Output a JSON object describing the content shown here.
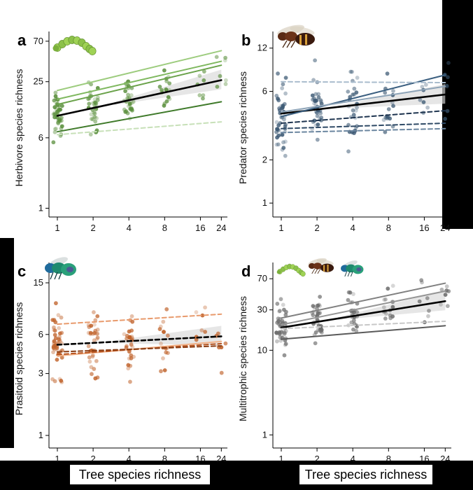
{
  "x_axis_label": "Tree species richness",
  "x_ticks": [
    1,
    2,
    4,
    8,
    16,
    24
  ],
  "chart_data": [
    {
      "type": "scatter",
      "panel_label": "a",
      "ylabel": "Herbivore species richness",
      "y_ticks": [
        1,
        6,
        25,
        70
      ],
      "ylim": [
        0.8,
        75
      ],
      "xlim": [
        0.85,
        27
      ],
      "log_axes": true,
      "color": "#5a8f3c",
      "icon": "caterpillar-icon",
      "fit_lines": [
        {
          "from": [
            1,
            10.5
          ],
          "to": [
            24,
            26
          ],
          "style": "solid",
          "color": "#000000",
          "overall": true
        },
        {
          "from": [
            1,
            20
          ],
          "to": [
            24,
            55
          ],
          "style": "solid",
          "color": "#9dcc7e"
        },
        {
          "from": [
            1,
            16
          ],
          "to": [
            24,
            42
          ],
          "style": "solid",
          "color": "#7fb85f"
        },
        {
          "from": [
            1,
            14
          ],
          "to": [
            24,
            38
          ],
          "style": "solid",
          "color": "#6aa24a"
        },
        {
          "from": [
            1,
            7
          ],
          "to": [
            24,
            15
          ],
          "style": "solid",
          "color": "#3f7a2a"
        },
        {
          "from": [
            1,
            6.5
          ],
          "to": [
            24,
            9
          ],
          "style": "dashed",
          "color": "#c7e0b8"
        }
      ]
    },
    {
      "type": "scatter",
      "panel_label": "b",
      "ylabel": "Predator species richness",
      "y_ticks": [
        1,
        2,
        6,
        12
      ],
      "ylim": [
        0.8,
        14
      ],
      "xlim": [
        0.85,
        27
      ],
      "log_axes": true,
      "color": "#3b5873",
      "icon": "wasp-icon",
      "fit_lines": [
        {
          "from": [
            1,
            4.2
          ],
          "to": [
            24,
            5.7
          ],
          "style": "solid",
          "color": "#000000",
          "overall": true
        },
        {
          "from": [
            1,
            4.0
          ],
          "to": [
            24,
            7.8
          ],
          "style": "solid",
          "color": "#3b5f80"
        },
        {
          "from": [
            1,
            4.3
          ],
          "to": [
            24,
            6.5
          ],
          "style": "solid",
          "color": "#8da3b7"
        },
        {
          "from": [
            1,
            7.0
          ],
          "to": [
            24,
            6.9
          ],
          "style": "dashed",
          "color": "#a9bccd"
        },
        {
          "from": [
            1,
            3.6
          ],
          "to": [
            24,
            4.4
          ],
          "style": "dashed",
          "color": "#1f3550"
        },
        {
          "from": [
            1,
            3.3
          ],
          "to": [
            24,
            3.6
          ],
          "style": "dashed",
          "color": "#2f4a66"
        },
        {
          "from": [
            1,
            3.1
          ],
          "to": [
            24,
            3.3
          ],
          "style": "dashed",
          "color": "#6b86a0"
        }
      ]
    },
    {
      "type": "scatter",
      "panel_label": "c",
      "ylabel": "Prasitoid species richness",
      "y_ticks": [
        1,
        3,
        6,
        15
      ],
      "ylim": [
        0.8,
        19
      ],
      "xlim": [
        0.85,
        27
      ],
      "log_axes": true,
      "color": "#c0622a",
      "icon": "cuckoo-wasp-icon",
      "fit_lines": [
        {
          "from": [
            1,
            5.0
          ],
          "to": [
            24,
            5.8
          ],
          "style": "dashed",
          "color": "#000000",
          "overall": true
        },
        {
          "from": [
            1,
            7.2
          ],
          "to": [
            24,
            8.6
          ],
          "style": "dashed",
          "color": "#e89a6c"
        },
        {
          "from": [
            1,
            4.1
          ],
          "to": [
            24,
            5.3
          ],
          "style": "solid",
          "color": "#f2b38a"
        },
        {
          "from": [
            1,
            4.2
          ],
          "to": [
            24,
            5.1
          ],
          "style": "dashed",
          "color": "#b8541f"
        },
        {
          "from": [
            1,
            4.4
          ],
          "to": [
            24,
            4.9
          ],
          "style": "dashed",
          "color": "#8a3d14"
        }
      ]
    },
    {
      "type": "scatter",
      "panel_label": "d",
      "ylabel": "Multitrophic species richness",
      "y_ticks": [
        1,
        10,
        30,
        70
      ],
      "ylim": [
        0.7,
        90
      ],
      "xlim": [
        0.85,
        27
      ],
      "log_axes": true,
      "color": "#6e6e6e",
      "icon": "multitrophic-icons",
      "fit_lines": [
        {
          "from": [
            1,
            18.5
          ],
          "to": [
            24,
            38
          ],
          "style": "solid",
          "color": "#000000",
          "overall": true
        },
        {
          "from": [
            1,
            24
          ],
          "to": [
            24,
            62
          ],
          "style": "solid",
          "color": "#808080"
        },
        {
          "from": [
            1,
            20
          ],
          "to": [
            24,
            50
          ],
          "style": "solid",
          "color": "#969696"
        },
        {
          "from": [
            1,
            13.5
          ],
          "to": [
            24,
            19.5
          ],
          "style": "solid",
          "color": "#5a5a5a"
        },
        {
          "from": [
            1,
            18
          ],
          "to": [
            24,
            22
          ],
          "style": "dashed",
          "color": "#c8c8c8"
        }
      ]
    }
  ]
}
